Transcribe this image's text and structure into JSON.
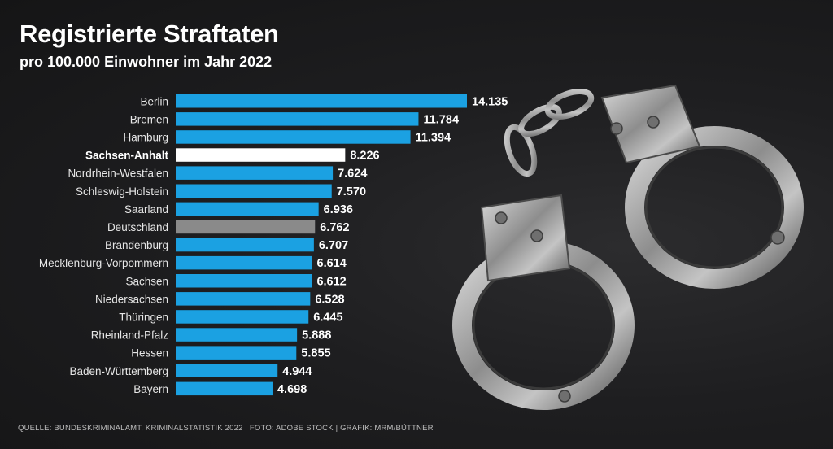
{
  "header": {
    "title": "Registrierte Straftaten",
    "subtitle": "pro 100.000 Einwohner im Jahr 2022"
  },
  "footer": {
    "source": "QUELLE: BUNDESKRIMINALAMT, KRIMINALSTATISTIK 2022 | FOTO: ADOBE STOCK | GRAFIK: MRM/BÜTTNER"
  },
  "colors": {
    "bar": "#1ba1e2",
    "highlight": "#ffffff",
    "national": "#8a8a8a"
  },
  "chart_data": {
    "type": "bar",
    "orientation": "horizontal",
    "title": "Registrierte Straftaten",
    "subtitle": "pro 100.000 Einwohner im Jahr 2022",
    "xlabel": "",
    "ylabel": "",
    "xlim": [
      0,
      14135
    ],
    "grid": false,
    "legend": "none",
    "categories": [
      "Berlin",
      "Bremen",
      "Hamburg",
      "Sachsen-Anhalt",
      "Nordrhein-Westfalen",
      "Schleswig-Holstein",
      "Saarland",
      "Deutschland",
      "Brandenburg",
      "Mecklenburg-Vorpommern",
      "Sachsen",
      "Niedersachsen",
      "Thüringen",
      "Rheinland-Pfalz",
      "Hessen",
      "Baden-Württemberg",
      "Bayern"
    ],
    "values": [
      14135,
      11784,
      11394,
      8226,
      7624,
      7570,
      6936,
      6762,
      6707,
      6614,
      6612,
      6528,
      6445,
      5888,
      5855,
      4944,
      4698
    ],
    "value_labels": [
      "14.135",
      "11.784",
      "11.394",
      "8.226",
      "7.624",
      "7.570",
      "6.936",
      "6.762",
      "6.707",
      "6.614",
      "6.612",
      "6.528",
      "6.445",
      "5.888",
      "5.855",
      "4.944",
      "4.698"
    ],
    "highlight": "Sachsen-Anhalt",
    "reference": "Deutschland"
  }
}
